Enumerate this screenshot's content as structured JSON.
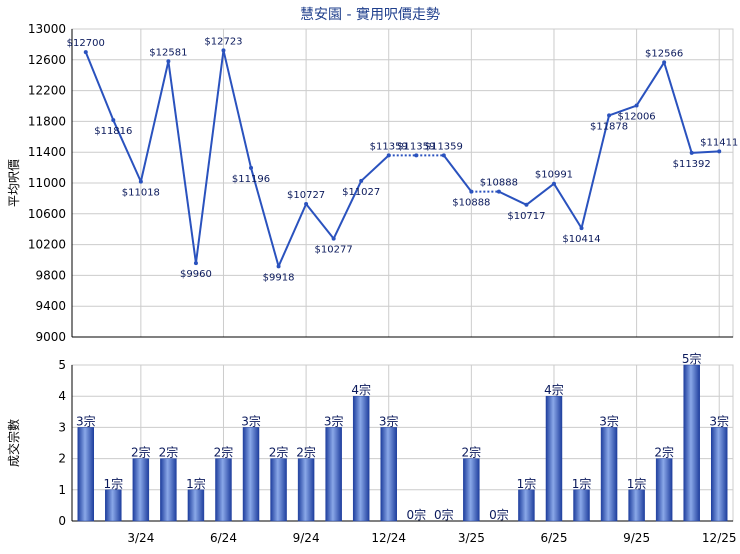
{
  "chart_data": [
    {
      "type": "line",
      "title": "慧安園 - 實用呎價走勢",
      "ylabel": "平均呎價",
      "ylim": [
        9000,
        13000
      ],
      "yticks": [
        9000,
        9400,
        9800,
        10200,
        10600,
        11000,
        11400,
        11800,
        12200,
        12600,
        13000
      ],
      "grid": true,
      "series": [
        {
          "values": [
            12700,
            11816,
            11018,
            12581,
            9960,
            12723,
            11196,
            9918,
            10727,
            10277,
            11027,
            11359,
            11359,
            11359,
            10888,
            10888,
            10717,
            10991,
            10414,
            11878,
            12006,
            12566,
            11392,
            11411
          ],
          "labels": [
            "$12700",
            "$11816",
            "$11018",
            "$12581",
            "$9960",
            "$12723",
            "$11196",
            "$9918",
            "$10727",
            "$10277",
            "$11027",
            "$11359",
            "$11359",
            "$11359",
            "$10888",
            "$10888",
            "$10717",
            "$10991",
            "$10414",
            "$11878",
            "$12006",
            "$12566",
            "$11392",
            "$11411"
          ]
        }
      ],
      "dotted_segments": [
        [
          11,
          13
        ],
        [
          14,
          15
        ]
      ]
    },
    {
      "type": "bar",
      "ylabel": "成交宗數",
      "ylim": [
        0,
        5
      ],
      "yticks": [
        0,
        1,
        2,
        3,
        4,
        5
      ],
      "categories": [
        "",
        "",
        "3/24",
        "",
        "",
        "6/24",
        "",
        "",
        "9/24",
        "",
        "",
        "12/24",
        "",
        "",
        "3/25",
        "",
        "",
        "6/25",
        "",
        "",
        "9/25",
        "",
        "",
        "12/25"
      ],
      "values": [
        3,
        1,
        2,
        2,
        1,
        2,
        3,
        2,
        2,
        3,
        4,
        3,
        0,
        0,
        2,
        0,
        1,
        4,
        1,
        3,
        1,
        2,
        5,
        3
      ],
      "labels": [
        "3宗",
        "1宗",
        "2宗",
        "2宗",
        "1宗",
        "2宗",
        "3宗",
        "2宗",
        "2宗",
        "3宗",
        "4宗",
        "3宗",
        "0宗",
        "0宗",
        "2宗",
        "0宗",
        "1宗",
        "4宗",
        "1宗",
        "3宗",
        "1宗",
        "2宗",
        "5宗",
        "3宗"
      ],
      "grid": true
    }
  ],
  "colors": {
    "line": "#2a52be",
    "bar_dark": "#1f3f9e",
    "bar_light": "#8aa8e8",
    "grid": "#cccccc",
    "axis": "#000000",
    "title": "#1f3f8c"
  }
}
